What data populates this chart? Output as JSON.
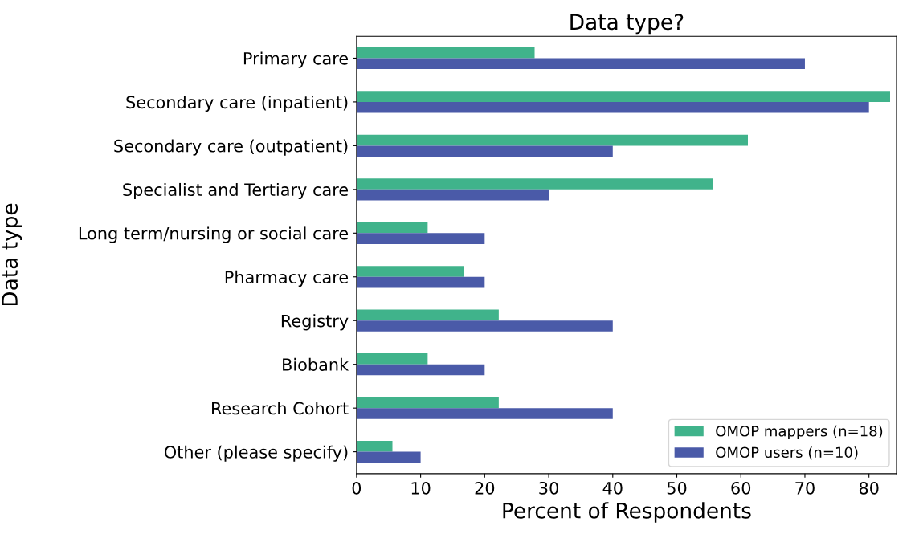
{
  "chart_data": {
    "type": "bar",
    "orientation": "horizontal",
    "title": "Data type?",
    "xlabel": "Percent of Respondents",
    "ylabel": "Data type",
    "categories": [
      "Primary care",
      "Secondary care (inpatient)",
      "Secondary care (outpatient)",
      "Specialist and Tertiary care",
      "Long term/nursing or social care",
      "Pharmacy care",
      "Registry",
      "Biobank",
      "Research Cohort",
      "Other (please specify)"
    ],
    "series": [
      {
        "name": "OMOP mappers (n=18)",
        "color": "#40b38b",
        "values": [
          27.8,
          83.3,
          61.1,
          55.6,
          11.1,
          16.7,
          22.2,
          11.1,
          22.2,
          5.6
        ]
      },
      {
        "name": "OMOP users (n=10)",
        "color": "#4a5aa8",
        "values": [
          70,
          80,
          40,
          30,
          20,
          20,
          40,
          20,
          40,
          10
        ]
      }
    ],
    "xlim": [
      0,
      84.3
    ],
    "xticks": [
      0,
      10,
      20,
      30,
      40,
      50,
      60,
      70,
      80
    ],
    "grid": false,
    "legend": "bottom right"
  }
}
